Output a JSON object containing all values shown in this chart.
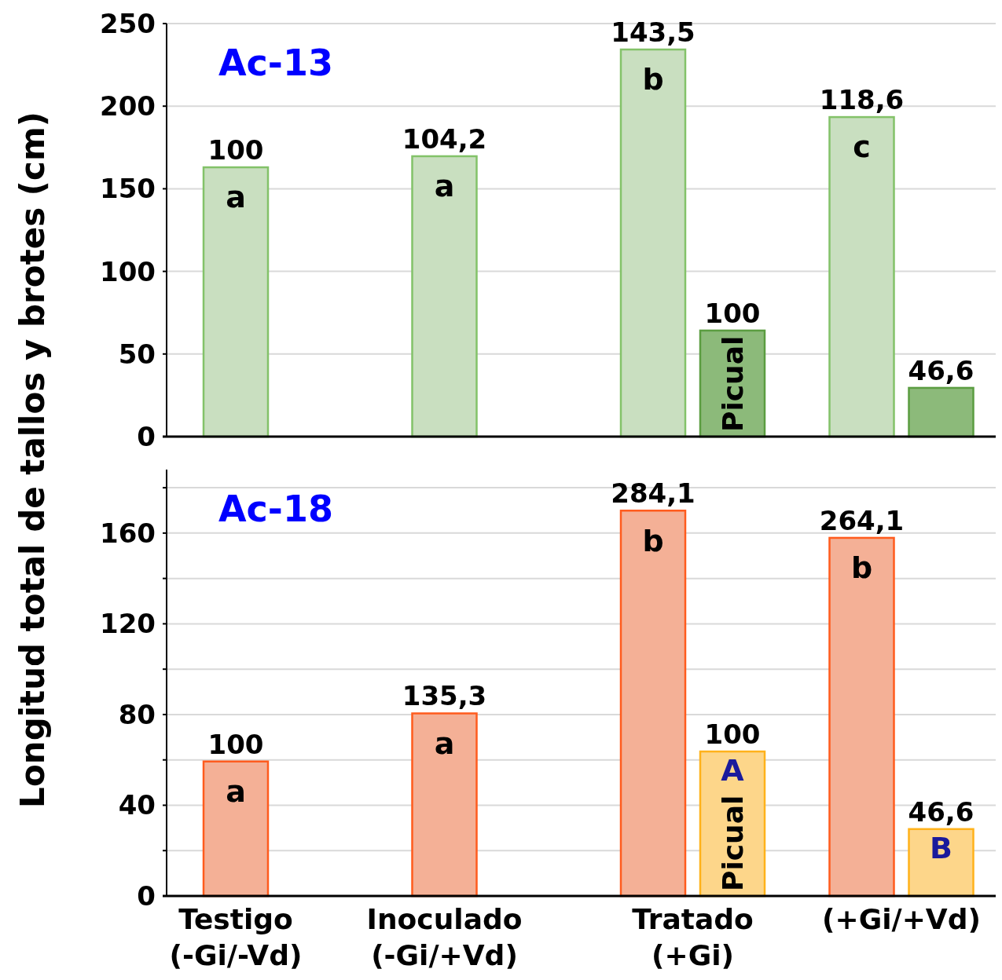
{
  "chart_data": [
    {
      "type": "bar",
      "title": "Ac-13",
      "ylabel": "Longitud total de tallos y brotes (cm)",
      "categories": [
        "Testigo (-Gi/-Vd)",
        "Inoculado (-Gi/+Vd)",
        "Tratado (+Gi)",
        "(+Gi/+Vd)"
      ],
      "series": [
        {
          "color": "#c9dfc0",
          "values": [
            163,
            169.7,
            234.3,
            193.4
          ]
        },
        {
          "name": "Picual",
          "color": "#8cba7a",
          "values": [
            null,
            null,
            64.2,
            29.5
          ]
        }
      ],
      "ylim": [
        0,
        250
      ],
      "yticks": [
        0,
        50,
        100,
        150,
        200,
        250
      ],
      "grid": "y",
      "tick_labels": "y",
      "annotations": [
        {
          "text": "100",
          "x": "Testigo (-Gi/-Vd)",
          "y": 163
        },
        {
          "text": "a",
          "x": "Testigo (-Gi/-Vd)",
          "y": 163
        },
        {
          "text": "104,2",
          "x": "Inoculado (-Gi/+Vd)",
          "y": 169.7
        },
        {
          "text": "a",
          "x": "Inoculado (-Gi/+Vd)",
          "y": 169.7
        },
        {
          "text": "143,5",
          "x": "Tratado (+Gi)",
          "y": 234.3
        },
        {
          "text": "b",
          "x": "Tratado (+Gi)",
          "y": 234.3
        },
        {
          "text": "100",
          "x": "Tratado (+Gi)",
          "y": 64.2
        },
        {
          "text": "118,6",
          "y": 193.4
        },
        {
          "text": "c",
          "y": 193.4
        },
        {
          "text": "46,6",
          "x": "(+Gi/+Vd)",
          "y": 29.5
        }
      ]
    },
    {
      "type": "bar",
      "title": "Ac-18",
      "categories": [
        "Testigo (-Gi/-Vd)",
        "Inoculado (-Gi/+Vd)",
        "Tratado (+Gi)",
        "(+Gi/+Vd)"
      ],
      "series": [
        {
          "color": "#f4b096",
          "values": [
            59.3,
            80.5,
            169.9,
            157.9
          ]
        },
        {
          "name": "Picual",
          "color": "#fdd68a",
          "values": [
            null,
            null,
            63.7,
            29.5
          ]
        }
      ],
      "ylim": [
        0,
        188
      ],
      "yticks": [
        0,
        {
          "value": 20,
          "label": null
        },
        40,
        {
          "value": 60,
          "label": null
        },
        80,
        {
          "value": 100,
          "label": null
        },
        120,
        {
          "value": 140,
          "label": null
        },
        160,
        {
          "value": 180,
          "label": null
        }
      ],
      "grid": "y",
      "annotations": [
        {
          "text": "100",
          "x": "Testigo (-Gi/-Vd)",
          "y": 59.3
        },
        {
          "text": "a",
          "x": "Testigo (-Gi/-Vd)",
          "y": 59.3
        },
        {
          "text": "135,3",
          "x": "Inoculado (-Gi/+Vd)",
          "y": 80.5
        },
        {
          "text": "a",
          "x": "Inoculado (-Gi/+Vd)",
          "y": 80.5
        },
        {
          "text": "284,1",
          "x": "Tratado (+Gi)",
          "y": 169.9
        },
        {
          "text": "b",
          "x": "Tratado (+Gi)",
          "y": 169.9
        },
        {
          "text": "100",
          "x": "Tratado (+Gi)",
          "y": 63.7
        },
        {
          "text": "A",
          "x": "Tratado (+Gi)",
          "y": 63.7
        },
        {
          "text": "264,1",
          "y": 157.9
        },
        {
          "text": "b",
          "y": 157.9
        },
        {
          "text": "46,6",
          "x": "(+Gi/+Vd)",
          "y": 29.5
        },
        {
          "text": "B",
          "x": "(+Gi/+Vd)",
          "y": 29.5
        }
      ]
    }
  ]
}
